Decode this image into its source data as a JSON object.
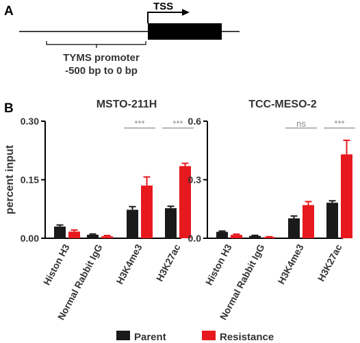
{
  "panel_a": {
    "label": "A",
    "tss_label": "TSS",
    "promoter_label": "TYMS promoter",
    "range_label": "-500 bp to 0 bp"
  },
  "panel_b": {
    "label": "B"
  },
  "colors": {
    "parent": "#1a1a1a",
    "resistance": "#e8191e",
    "sig_line": "#8c8c8c"
  },
  "legend": {
    "parent": "Parent",
    "resistance": "Resistance"
  },
  "chart_data": [
    {
      "type": "bar",
      "title": "MSTO-211H",
      "ylabel": "percent input",
      "ylim": [
        0,
        0.3
      ],
      "yticks": [
        "0.00",
        "0.15",
        "0.30"
      ],
      "categories": [
        "Histon H3",
        "Normal Rabbit IgG",
        "H3K4me3",
        "H3K27ac"
      ],
      "series": [
        {
          "name": "Parent",
          "values": [
            0.03,
            0.009,
            0.073,
            0.077
          ],
          "errors": [
            0.004,
            0.002,
            0.008,
            0.005
          ]
        },
        {
          "name": "Resistance",
          "values": [
            0.017,
            0.005,
            0.135,
            0.185
          ],
          "errors": [
            0.004,
            0.002,
            0.022,
            0.007
          ]
        }
      ],
      "annotations": [
        "",
        "",
        "***",
        "***"
      ]
    },
    {
      "type": "bar",
      "title": "TCC-MESO-2",
      "ylabel": "",
      "ylim": [
        0,
        0.6
      ],
      "yticks": [
        "0.0",
        "0.3",
        "0.6"
      ],
      "categories": [
        "Histon H3",
        "Normal Rabbit IgG",
        "H3K4me3",
        "H3K27ac"
      ],
      "series": [
        {
          "name": "Parent",
          "values": [
            0.033,
            0.012,
            0.102,
            0.182
          ],
          "errors": [
            0.004,
            0.003,
            0.012,
            0.01
          ]
        },
        {
          "name": "Resistance",
          "values": [
            0.017,
            0.006,
            0.17,
            0.43
          ],
          "errors": [
            0.004,
            0.002,
            0.018,
            0.072
          ]
        }
      ],
      "annotations": [
        "",
        "",
        "ns",
        "***"
      ]
    }
  ]
}
